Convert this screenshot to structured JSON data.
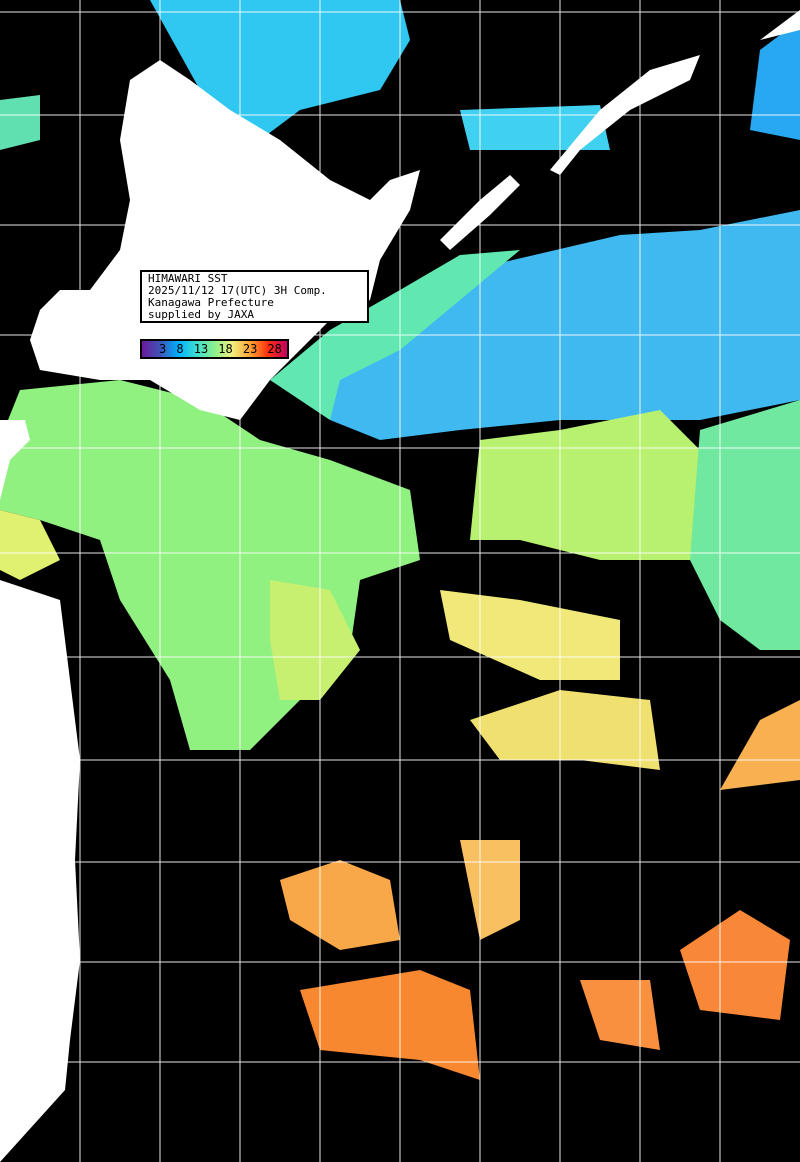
{
  "info_box": {
    "lines": [
      "HIMAWARI SST",
      "2025/11/12 17(UTC) 3H Comp.",
      "Kanagawa Prefecture",
      "supplied by JAXA"
    ]
  },
  "color_scale": {
    "ticks": [
      "3",
      "8",
      "13",
      "18",
      "23",
      "28"
    ],
    "colors": [
      "#6a1b9a",
      "#00b0ff",
      "#8cf08c",
      "#f0f080",
      "#ffa030",
      "#ff3010",
      "#c00060"
    ]
  },
  "map": {
    "land_color": "#ffffff",
    "no_data_color": "#000000",
    "grid_color": "#ffffff"
  }
}
